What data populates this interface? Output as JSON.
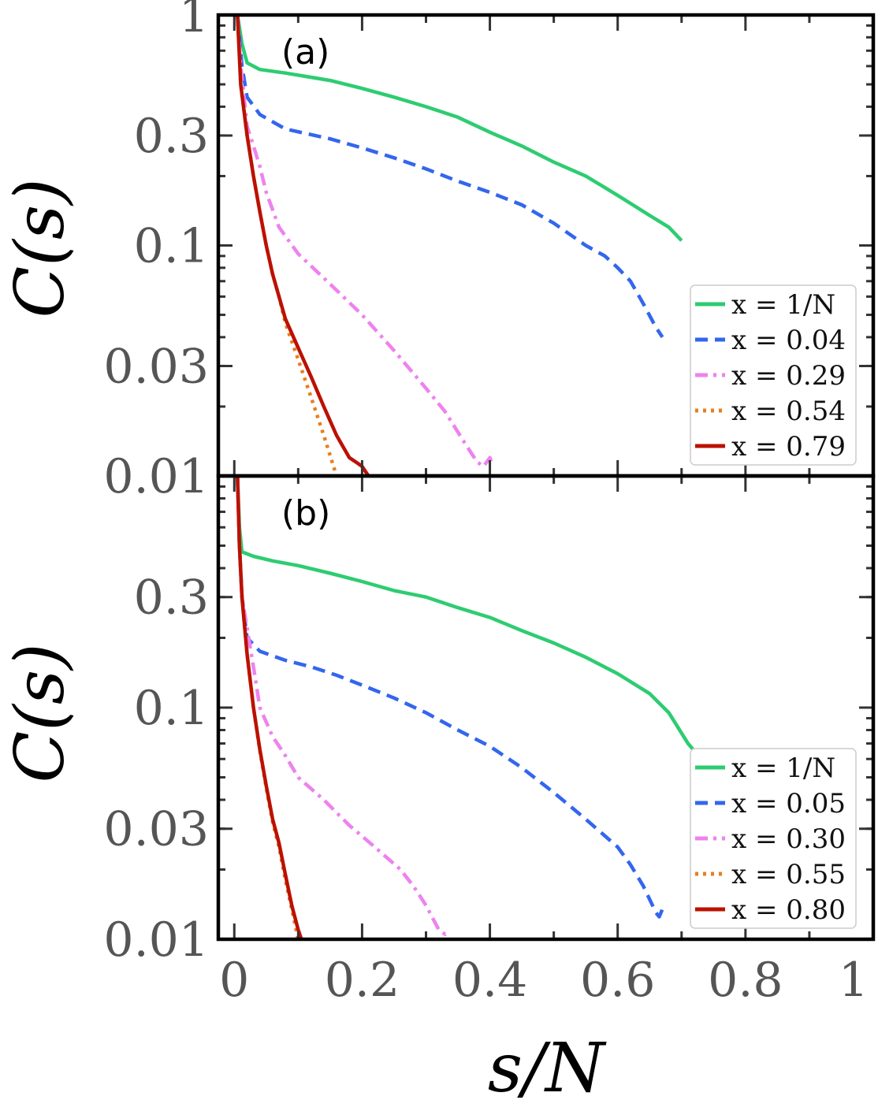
{
  "chart_data": [
    {
      "type": "line",
      "panel_label": "(a)",
      "ylabel": "C(s)",
      "yscale": "log",
      "xlim": [
        -0.025,
        1.0
      ],
      "ylim": [
        0.01,
        1.0
      ],
      "yticks": [
        {
          "value": 1.0,
          "label": "1"
        },
        {
          "value": 0.3,
          "label": "0.3"
        },
        {
          "value": 0.1,
          "label": "0.1"
        },
        {
          "value": 0.03,
          "label": "0.03"
        },
        {
          "value": 0.01,
          "label": "0.01"
        }
      ],
      "xticks": [
        0,
        0.2,
        0.4,
        0.6,
        0.8,
        1.0
      ],
      "legend": "bottom-right",
      "series": [
        {
          "name": "x = 1/N",
          "color": "#2ecc71",
          "dash": "solid",
          "points": [
            [
              0.005,
              1.0
            ],
            [
              0.012,
              0.75
            ],
            [
              0.02,
              0.62
            ],
            [
              0.04,
              0.58
            ],
            [
              0.08,
              0.56
            ],
            [
              0.15,
              0.52
            ],
            [
              0.2,
              0.48
            ],
            [
              0.25,
              0.44
            ],
            [
              0.3,
              0.4
            ],
            [
              0.35,
              0.36
            ],
            [
              0.4,
              0.31
            ],
            [
              0.45,
              0.27
            ],
            [
              0.5,
              0.23
            ],
            [
              0.55,
              0.2
            ],
            [
              0.6,
              0.165
            ],
            [
              0.65,
              0.135
            ],
            [
              0.68,
              0.12
            ],
            [
              0.7,
              0.105
            ]
          ]
        },
        {
          "name": "x = 0.04",
          "color": "#3366ee",
          "dash": "dashed",
          "points": [
            [
              0.005,
              1.0
            ],
            [
              0.012,
              0.6
            ],
            [
              0.02,
              0.44
            ],
            [
              0.04,
              0.37
            ],
            [
              0.08,
              0.32
            ],
            [
              0.15,
              0.29
            ],
            [
              0.2,
              0.265
            ],
            [
              0.25,
              0.24
            ],
            [
              0.3,
              0.215
            ],
            [
              0.35,
              0.19
            ],
            [
              0.4,
              0.17
            ],
            [
              0.45,
              0.15
            ],
            [
              0.5,
              0.125
            ],
            [
              0.55,
              0.1
            ],
            [
              0.58,
              0.09
            ],
            [
              0.6,
              0.08
            ],
            [
              0.62,
              0.07
            ],
            [
              0.64,
              0.056
            ],
            [
              0.66,
              0.044
            ],
            [
              0.67,
              0.04
            ]
          ]
        },
        {
          "name": "x = 0.29",
          "color": "#ee82ee",
          "dash": "dashdot",
          "points": [
            [
              0.005,
              1.0
            ],
            [
              0.01,
              0.6
            ],
            [
              0.015,
              0.45
            ],
            [
              0.02,
              0.33
            ],
            [
              0.03,
              0.27
            ],
            [
              0.04,
              0.22
            ],
            [
              0.05,
              0.17
            ],
            [
              0.07,
              0.12
            ],
            [
              0.1,
              0.092
            ],
            [
              0.15,
              0.068
            ],
            [
              0.2,
              0.05
            ],
            [
              0.25,
              0.035
            ],
            [
              0.3,
              0.024
            ],
            [
              0.33,
              0.019
            ],
            [
              0.36,
              0.014
            ],
            [
              0.38,
              0.0115
            ],
            [
              0.39,
              0.011
            ],
            [
              0.4,
              0.012
            ],
            [
              0.405,
              0.011
            ]
          ]
        },
        {
          "name": "x = 0.54",
          "color": "#e67e22",
          "dash": "dotted",
          "points": [
            [
              0.005,
              1.0
            ],
            [
              0.01,
              0.5
            ],
            [
              0.02,
              0.3
            ],
            [
              0.03,
              0.2
            ],
            [
              0.04,
              0.14
            ],
            [
              0.05,
              0.1
            ],
            [
              0.06,
              0.075
            ],
            [
              0.07,
              0.06
            ],
            [
              0.08,
              0.046
            ],
            [
              0.1,
              0.032
            ],
            [
              0.12,
              0.022
            ],
            [
              0.14,
              0.015
            ],
            [
              0.16,
              0.01
            ]
          ]
        },
        {
          "name": "x = 0.79",
          "color": "#bb1100",
          "dash": "solid",
          "points": [
            [
              0.005,
              1.0
            ],
            [
              0.01,
              0.5
            ],
            [
              0.02,
              0.3
            ],
            [
              0.03,
              0.2
            ],
            [
              0.04,
              0.14
            ],
            [
              0.05,
              0.1
            ],
            [
              0.06,
              0.075
            ],
            [
              0.07,
              0.06
            ],
            [
              0.08,
              0.048
            ],
            [
              0.1,
              0.036
            ],
            [
              0.12,
              0.027
            ],
            [
              0.14,
              0.02
            ],
            [
              0.16,
              0.015
            ],
            [
              0.18,
              0.012
            ],
            [
              0.19,
              0.0115
            ],
            [
              0.2,
              0.011
            ],
            [
              0.21,
              0.01
            ]
          ]
        }
      ]
    },
    {
      "type": "line",
      "panel_label": "(b)",
      "ylabel": "C(s)",
      "xlabel": "s/N",
      "yscale": "log",
      "xlim": [
        -0.025,
        1.0
      ],
      "ylim": [
        0.01,
        1.0
      ],
      "yticks": [
        {
          "value": 0.3,
          "label": "0.3"
        },
        {
          "value": 0.1,
          "label": "0.1"
        },
        {
          "value": 0.03,
          "label": "0.03"
        },
        {
          "value": 0.01,
          "label": "0.01"
        }
      ],
      "xticks": [
        {
          "value": 0,
          "label": "0"
        },
        {
          "value": 0.2,
          "label": "0.2"
        },
        {
          "value": 0.4,
          "label": "0.4"
        },
        {
          "value": 0.6,
          "label": "0.6"
        },
        {
          "value": 0.8,
          "label": "0.8"
        },
        {
          "value": 1.0,
          "label": "1"
        }
      ],
      "legend": "bottom-right",
      "series": [
        {
          "name": "x = 1/N",
          "color": "#2ecc71",
          "dash": "solid",
          "points": [
            [
              0.005,
              1.0
            ],
            [
              0.008,
              0.6
            ],
            [
              0.012,
              0.47
            ],
            [
              0.03,
              0.45
            ],
            [
              0.06,
              0.43
            ],
            [
              0.1,
              0.41
            ],
            [
              0.15,
              0.38
            ],
            [
              0.2,
              0.35
            ],
            [
              0.25,
              0.32
            ],
            [
              0.3,
              0.3
            ],
            [
              0.35,
              0.27
            ],
            [
              0.4,
              0.245
            ],
            [
              0.45,
              0.215
            ],
            [
              0.5,
              0.19
            ],
            [
              0.55,
              0.165
            ],
            [
              0.6,
              0.14
            ],
            [
              0.65,
              0.115
            ],
            [
              0.68,
              0.095
            ],
            [
              0.71,
              0.07
            ],
            [
              0.72,
              0.065
            ]
          ]
        },
        {
          "name": "x = 0.05",
          "color": "#3366ee",
          "dash": "dashed",
          "points": [
            [
              0.005,
              1.0
            ],
            [
              0.008,
              0.5
            ],
            [
              0.012,
              0.3
            ],
            [
              0.02,
              0.2
            ],
            [
              0.04,
              0.175
            ],
            [
              0.08,
              0.16
            ],
            [
              0.12,
              0.15
            ],
            [
              0.16,
              0.138
            ],
            [
              0.2,
              0.125
            ],
            [
              0.25,
              0.11
            ],
            [
              0.3,
              0.095
            ],
            [
              0.35,
              0.08
            ],
            [
              0.4,
              0.068
            ],
            [
              0.45,
              0.055
            ],
            [
              0.5,
              0.043
            ],
            [
              0.55,
              0.033
            ],
            [
              0.6,
              0.025
            ],
            [
              0.62,
              0.021
            ],
            [
              0.64,
              0.017
            ],
            [
              0.66,
              0.013
            ],
            [
              0.665,
              0.0125
            ],
            [
              0.67,
              0.0135
            ]
          ]
        },
        {
          "name": "x = 0.30",
          "color": "#ee82ee",
          "dash": "dashdot",
          "points": [
            [
              0.005,
              1.0
            ],
            [
              0.008,
              0.5
            ],
            [
              0.012,
              0.3
            ],
            [
              0.02,
              0.22
            ],
            [
              0.03,
              0.15
            ],
            [
              0.04,
              0.1
            ],
            [
              0.06,
              0.075
            ],
            [
              0.08,
              0.062
            ],
            [
              0.1,
              0.05
            ],
            [
              0.14,
              0.04
            ],
            [
              0.18,
              0.031
            ],
            [
              0.22,
              0.025
            ],
            [
              0.26,
              0.02
            ],
            [
              0.28,
              0.017
            ],
            [
              0.3,
              0.014
            ],
            [
              0.32,
              0.011
            ],
            [
              0.33,
              0.0105
            ],
            [
              0.335,
              0.011
            ]
          ]
        },
        {
          "name": "x = 0.55",
          "color": "#e67e22",
          "dash": "dotted",
          "points": [
            [
              0.005,
              1.0
            ],
            [
              0.008,
              0.5
            ],
            [
              0.012,
              0.3
            ],
            [
              0.02,
              0.17
            ],
            [
              0.03,
              0.1
            ],
            [
              0.04,
              0.065
            ],
            [
              0.05,
              0.045
            ],
            [
              0.06,
              0.032
            ],
            [
              0.07,
              0.025
            ],
            [
              0.08,
              0.018
            ],
            [
              0.09,
              0.0135
            ],
            [
              0.1,
              0.01
            ]
          ]
        },
        {
          "name": "x = 0.80",
          "color": "#bb1100",
          "dash": "solid",
          "points": [
            [
              0.005,
              1.0
            ],
            [
              0.008,
              0.5
            ],
            [
              0.012,
              0.3
            ],
            [
              0.02,
              0.17
            ],
            [
              0.03,
              0.1
            ],
            [
              0.04,
              0.066
            ],
            [
              0.05,
              0.046
            ],
            [
              0.06,
              0.033
            ],
            [
              0.07,
              0.026
            ],
            [
              0.08,
              0.019
            ],
            [
              0.09,
              0.014
            ],
            [
              0.1,
              0.011
            ],
            [
              0.105,
              0.01
            ]
          ]
        }
      ]
    }
  ]
}
